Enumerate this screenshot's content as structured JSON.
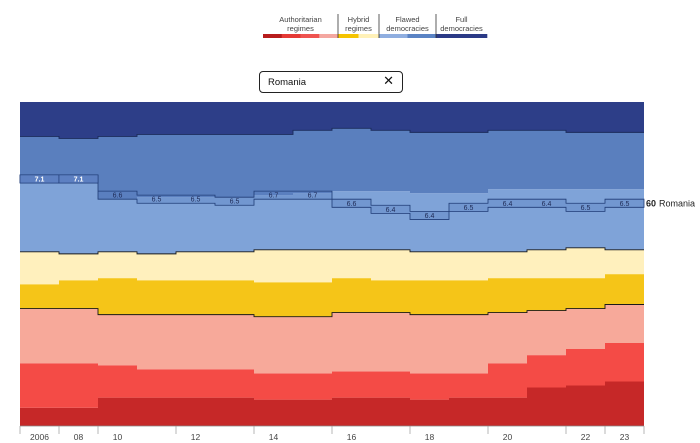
{
  "legend": {
    "groups": [
      {
        "label_1": "Authoritarian",
        "label_2": "regimes",
        "colors": [
          "#b71c1c",
          "#e53935",
          "#ef5350",
          "#f4a7a0"
        ]
      },
      {
        "label_1": "Hybrid",
        "label_2": "regimes",
        "colors": [
          "#f5c400",
          "#fff1b8"
        ]
      },
      {
        "label_1": "Flawed",
        "label_2": "democracies",
        "colors": [
          "#8faee0",
          "#5a83c4"
        ]
      },
      {
        "label_1": "Full",
        "label_2": "democracies",
        "colors": [
          "#2b3a86"
        ]
      }
    ]
  },
  "search": {
    "value": "Romania",
    "clear_icon": "close-icon"
  },
  "colors": {
    "band_0": "#c62828",
    "band_1": "#f44b46",
    "band_2": "#f7a99a",
    "band_3": "#f5c518",
    "band_4": "#fff0bd",
    "band_5": "#7fa3d8",
    "band_6": "#5a7fbe",
    "band_7": "#2d3e88",
    "highlight": "#5d80c2",
    "highlight_text": "#ffffff",
    "label_text": "#1e2a55"
  },
  "chart_data": {
    "type": "area",
    "subtype": "stacked share of countries by regime type (step)",
    "x": [
      2006,
      2008,
      2010,
      2011,
      2012,
      2013,
      2014,
      2015,
      2016,
      2017,
      2018,
      2019,
      2020,
      2021,
      2022,
      2023
    ],
    "x_tick_labels": [
      "2006",
      "08",
      "10",
      "12",
      "14",
      "16",
      "18",
      "20",
      "22",
      "23"
    ],
    "bands_bottom_to_top": [
      {
        "group": "Authoritarian regimes",
        "shade": 0,
        "upper_boundary": [
          0.09,
          0.09,
          0.14,
          0.14,
          0.14,
          0.14,
          0.13,
          0.13,
          0.14,
          0.14,
          0.13,
          0.14,
          0.14,
          0.19,
          0.2,
          0.22
        ]
      },
      {
        "group": "Authoritarian regimes",
        "shade": 1,
        "upper_boundary": [
          0.31,
          0.31,
          0.3,
          0.28,
          0.28,
          0.28,
          0.26,
          0.26,
          0.27,
          0.27,
          0.26,
          0.26,
          0.31,
          0.35,
          0.38,
          0.41
        ]
      },
      {
        "group": "Authoritarian regimes",
        "shade": 2,
        "upper_boundary": [
          0.58,
          0.58,
          0.55,
          0.55,
          0.55,
          0.55,
          0.54,
          0.54,
          0.56,
          0.56,
          0.55,
          0.55,
          0.56,
          0.57,
          0.58,
          0.6
        ]
      },
      {
        "group": "Hybrid regimes",
        "shade": 3,
        "upper_boundary": [
          0.7,
          0.72,
          0.73,
          0.72,
          0.72,
          0.72,
          0.71,
          0.71,
          0.73,
          0.72,
          0.72,
          0.72,
          0.73,
          0.73,
          0.73,
          0.75
        ]
      },
      {
        "group": "Hybrid regimes",
        "shade": 4,
        "upper_boundary": [
          0.86,
          0.85,
          0.86,
          0.85,
          0.86,
          0.86,
          0.87,
          0.87,
          0.87,
          0.87,
          0.86,
          0.86,
          0.86,
          0.87,
          0.88,
          0.87
        ]
      },
      {
        "group": "Flawed democracies",
        "shade": 5,
        "upper_boundary": [
          1.24,
          1.24,
          1.12,
          1.13,
          1.13,
          1.13,
          1.14,
          1.15,
          1.16,
          1.16,
          1.15,
          1.15,
          1.17,
          1.17,
          1.17,
          1.17
        ]
      },
      {
        "group": "Flawed democracies",
        "shade": 6,
        "upper_boundary": [
          1.43,
          1.42,
          1.43,
          1.44,
          1.44,
          1.44,
          1.44,
          1.46,
          1.47,
          1.46,
          1.45,
          1.45,
          1.46,
          1.46,
          1.45,
          1.45
        ]
      },
      {
        "group": "Full democracies",
        "shade": 7,
        "upper_boundary": [
          1.6,
          1.6,
          1.6,
          1.6,
          1.6,
          1.6,
          1.6,
          1.6,
          1.6,
          1.6,
          1.6,
          1.6,
          1.6,
          1.6,
          1.6,
          1.6
        ]
      }
    ],
    "highlight": {
      "country": "Romania",
      "rank_label": "60",
      "name_label": "Romania",
      "scores": [
        "7.1",
        "7.1",
        "6.6",
        "6.5",
        "6.5",
        "6.5",
        "6.7",
        "6.7",
        "6.6",
        "6.4",
        "6.4",
        "6.5",
        "6.4",
        "6.4",
        "6.5",
        "6.5"
      ],
      "upper": [
        1.24,
        1.24,
        1.16,
        1.14,
        1.14,
        1.13,
        1.16,
        1.16,
        1.12,
        1.09,
        1.06,
        1.1,
        1.12,
        1.12,
        1.1,
        1.12
      ],
      "lower": [
        1.2,
        1.2,
        1.12,
        1.1,
        1.1,
        1.09,
        1.12,
        1.12,
        1.08,
        1.05,
        1.02,
        1.06,
        1.08,
        1.08,
        1.06,
        1.08
      ]
    }
  }
}
